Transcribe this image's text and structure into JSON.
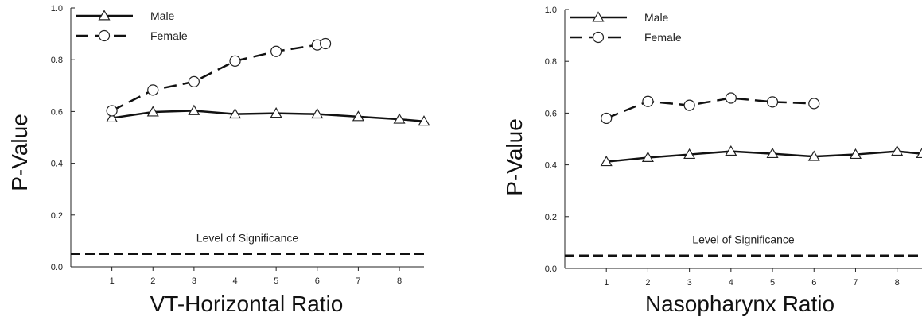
{
  "chart_data": [
    {
      "type": "line",
      "title": "",
      "xlabel": "VT-Horizontal Ratio",
      "ylabel": "P-Value",
      "xlim": [
        0,
        8.6
      ],
      "ylim": [
        0.0,
        1.0
      ],
      "xticks": [
        1,
        2,
        3,
        4,
        5,
        6,
        7,
        8
      ],
      "yticks": [
        0.0,
        0.2,
        0.4,
        0.6,
        0.8,
        1.0
      ],
      "ytick_labels": [
        "0.0",
        "0.2",
        "0.4",
        "0.6",
        "0.8",
        "1.0"
      ],
      "legend_position": "top-left",
      "grid": false,
      "series": [
        {
          "name": "Male",
          "marker": "triangle",
          "dash": "solid",
          "x": [
            1,
            2,
            3,
            4,
            5,
            6,
            7,
            8,
            8.6
          ],
          "y": [
            0.575,
            0.598,
            0.603,
            0.59,
            0.593,
            0.59,
            0.58,
            0.57,
            0.562
          ]
        },
        {
          "name": "Female",
          "marker": "circle",
          "dash": "long-dash",
          "x": [
            1,
            2,
            3,
            4,
            5,
            6,
            6.2
          ],
          "y": [
            0.603,
            0.683,
            0.715,
            0.795,
            0.832,
            0.857,
            0.862
          ]
        }
      ],
      "reference_line": {
        "y": 0.05,
        "label": "Level of Significance",
        "dash": "dashed"
      }
    },
    {
      "type": "line",
      "title": "",
      "xlabel": "Nasopharynx Ratio",
      "ylabel": "P-Value",
      "xlim": [
        0,
        8.6
      ],
      "ylim": [
        0.0,
        1.0
      ],
      "xticks": [
        1,
        2,
        3,
        4,
        5,
        6,
        7,
        8
      ],
      "yticks": [
        0.0,
        0.2,
        0.4,
        0.6,
        0.8,
        1.0
      ],
      "ytick_labels": [
        "0.0",
        "0.2",
        "0.4",
        "0.6",
        "0.8",
        "1.0"
      ],
      "legend_position": "top-left",
      "grid": false,
      "series": [
        {
          "name": "Male",
          "marker": "triangle",
          "dash": "solid",
          "x": [
            1,
            2,
            3,
            4,
            5,
            6,
            7,
            8,
            8.6
          ],
          "y": [
            0.412,
            0.428,
            0.44,
            0.452,
            0.443,
            0.432,
            0.44,
            0.452,
            0.443
          ]
        },
        {
          "name": "Female",
          "marker": "circle",
          "dash": "long-dash",
          "x": [
            1,
            2,
            3,
            4,
            5,
            6
          ],
          "y": [
            0.58,
            0.645,
            0.63,
            0.658,
            0.643,
            0.637
          ]
        }
      ],
      "reference_line": {
        "y": 0.05,
        "label": "Level of Significance",
        "dash": "dashed"
      }
    }
  ]
}
